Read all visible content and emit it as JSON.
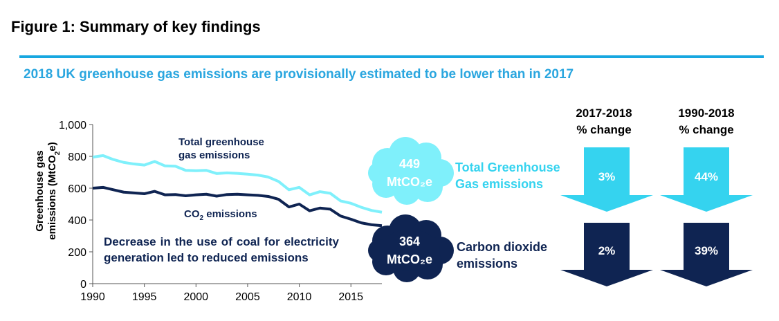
{
  "figure_title": "Figure 1: Summary of key findings",
  "subtitle": "2018 UK greenhouse gas emissions are provisionally estimated to be lower than in 2017",
  "colors": {
    "accent": "#17a7e0",
    "ghg": "#7ff0fb",
    "co2": "#0f2452",
    "cyan": "#35d3ef"
  },
  "chart_data": {
    "type": "line",
    "ylabel": "Greenhouse gas emissions (MtCO2e)",
    "ylim": [
      0,
      1000
    ],
    "xlim": [
      1990,
      2018
    ],
    "y_ticks": [
      "0",
      "200",
      "400",
      "600",
      "800",
      "1,000"
    ],
    "x_ticks": [
      "1990",
      "1995",
      "2000",
      "2005",
      "2010",
      "2015"
    ],
    "x": [
      1990,
      1991,
      1992,
      1993,
      1994,
      1995,
      1996,
      1997,
      1998,
      1999,
      2000,
      2001,
      2002,
      2003,
      2004,
      2005,
      2006,
      2007,
      2008,
      2009,
      2010,
      2011,
      2012,
      2013,
      2014,
      2015,
      2016,
      2017,
      2018
    ],
    "series": [
      {
        "name": "Total greenhouse gas emissions",
        "color": "#7ff0fb",
        "values": [
          795,
          805,
          780,
          762,
          752,
          745,
          768,
          740,
          738,
          712,
          710,
          712,
          692,
          696,
          693,
          688,
          682,
          670,
          642,
          590,
          605,
          558,
          578,
          568,
          520,
          505,
          480,
          460,
          449
        ]
      },
      {
        "name": "CO2 emissions",
        "color": "#0f2452",
        "values": [
          600,
          605,
          590,
          575,
          570,
          565,
          580,
          558,
          560,
          552,
          558,
          562,
          550,
          560,
          562,
          558,
          555,
          548,
          530,
          482,
          500,
          458,
          475,
          468,
          425,
          405,
          382,
          370,
          364
        ]
      }
    ],
    "annotation": "Decrease in the use of coal for electricity generation led to reduced emissions"
  },
  "series_labels": {
    "ghg_line1": "Total greenhouse",
    "ghg_line2": "gas emissions",
    "co2_prefix": "CO",
    "co2_sub": "2",
    "co2_suffix": " emissions"
  },
  "ylabel_line1": "Greenhouse gas",
  "ylabel_line2": "emissions (MtCO",
  "ylabel_sub": "2",
  "ylabel_end": "e)",
  "clouds": [
    {
      "value": "449",
      "unit": "MtCO₂e",
      "label_line1": "Total Greenhouse",
      "label_line2": "Gas emissions"
    },
    {
      "value": "364",
      "unit": "MtCO₂e",
      "label_line1": "Carbon dioxide",
      "label_line2": "emissions"
    }
  ],
  "columns": [
    {
      "head_line1": "2017-2018",
      "head_line2": "% change"
    },
    {
      "head_line1": "1990-2018",
      "head_line2": "% change"
    }
  ],
  "changes": {
    "ghg": [
      "3%",
      "44%"
    ],
    "co2": [
      "2%",
      "39%"
    ]
  }
}
